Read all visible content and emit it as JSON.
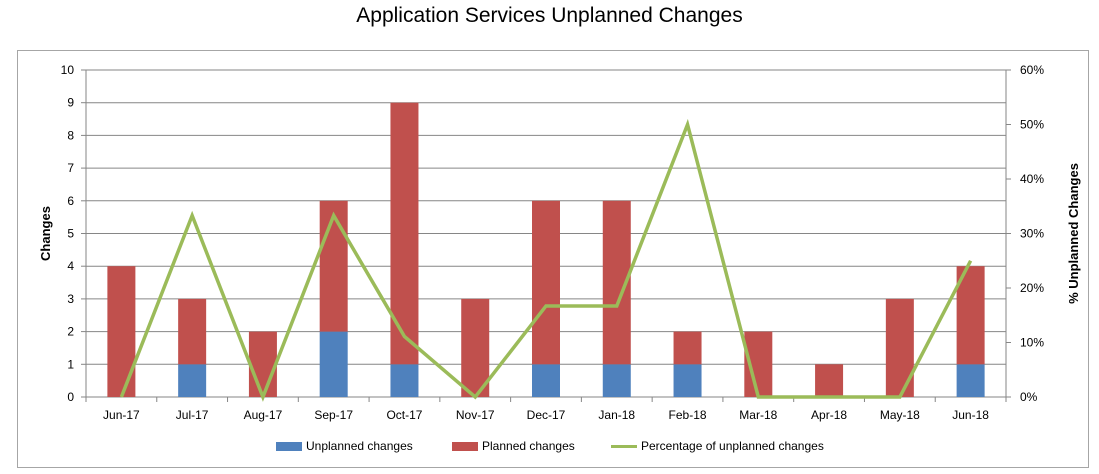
{
  "chart_data": {
    "type": "bar",
    "title": "Application Services Unplanned Changes",
    "categories": [
      "Jun-17",
      "Jul-17",
      "Aug-17",
      "Sep-17",
      "Oct-17",
      "Nov-17",
      "Dec-17",
      "Jan-18",
      "Feb-18",
      "Mar-18",
      "Apr-18",
      "May-18",
      "Jun-18"
    ],
    "series": [
      {
        "name": "Unplanned changes",
        "kind": "stacked-bar",
        "axis": "left",
        "color": "#4f81bd",
        "values": [
          0,
          1,
          0,
          2,
          1,
          0,
          1,
          1,
          1,
          0,
          0,
          0,
          1
        ]
      },
      {
        "name": "Planned changes",
        "kind": "stacked-bar",
        "axis": "left",
        "color": "#c0504d",
        "values": [
          4,
          2,
          2,
          4,
          8,
          3,
          5,
          5,
          1,
          2,
          1,
          3,
          3
        ]
      },
      {
        "name": "Percentage of unplanned changes",
        "kind": "line",
        "axis": "right",
        "color": "#9bbb59",
        "values": [
          0,
          33.3,
          0,
          33.3,
          11.1,
          0,
          16.7,
          16.7,
          50,
          0,
          0,
          0,
          25
        ]
      }
    ],
    "ylabel": "Changes",
    "ylim": [
      0,
      10
    ],
    "yticks": [
      "0",
      "1",
      "2",
      "3",
      "4",
      "5",
      "6",
      "7",
      "8",
      "9",
      "10"
    ],
    "y2label": "% Unplanned Changes",
    "y2lim": [
      0,
      60
    ],
    "y2ticks": [
      "0%",
      "10%",
      "20%",
      "30%",
      "40%",
      "50%",
      "60%"
    ],
    "grid": true,
    "legend_position": "bottom"
  }
}
